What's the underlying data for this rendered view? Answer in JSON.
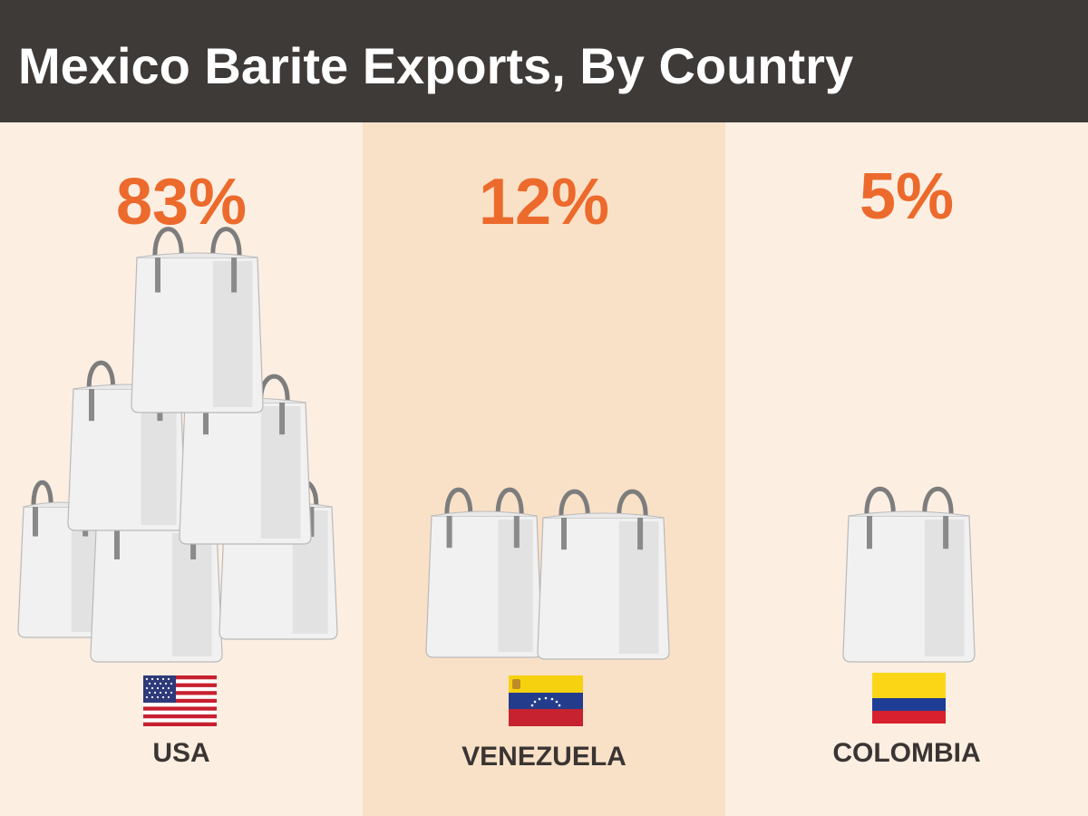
{
  "title": "Mexico Barite Exports, By Country",
  "colors": {
    "header_bg": "#3e3a37",
    "accent": "#ec6a2c",
    "label": "#3a3533",
    "panel_light": "#fcefe2",
    "panel_mid": "#f9e1c8"
  },
  "chart_data": {
    "type": "pictograph",
    "unit": "%",
    "categories": [
      "USA",
      "VENEZUELA",
      "COLOMBIA"
    ],
    "values": [
      83,
      12,
      5
    ],
    "value_labels": [
      "83%",
      "12%",
      "5%"
    ],
    "icon": "bulk-bag-icon",
    "icon_counts": [
      7,
      2,
      1
    ]
  },
  "countries": [
    {
      "name": "USA",
      "percent": "83%",
      "flag": "usa-flag-icon"
    },
    {
      "name": "VENEZUELA",
      "percent": "12%",
      "flag": "venezuela-flag-icon"
    },
    {
      "name": "COLOMBIA",
      "percent": "5%",
      "flag": "colombia-flag-icon"
    }
  ]
}
